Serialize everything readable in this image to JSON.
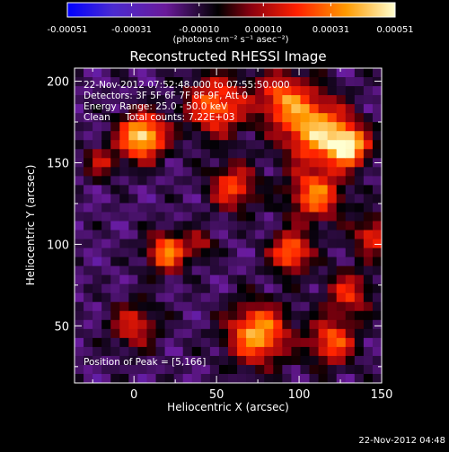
{
  "chart_data": {
    "type": "heatmap",
    "title": "Reconstructed RHESSI Image",
    "xlabel": "Heliocentric X (arcsec)",
    "ylabel": "Heliocentric Y (arcsec)",
    "xlim": [
      -36,
      150
    ],
    "ylim": [
      15,
      208
    ],
    "x_ticks": [
      0,
      50,
      100,
      150
    ],
    "y_ticks": [
      50,
      100,
      150,
      200
    ],
    "colorbar": {
      "min": -0.00051,
      "max": 0.00051,
      "tick_labels": [
        "-0.00051",
        "-0.00031",
        "-0.00010",
        "0.00010",
        "0.00031",
        "0.00051"
      ],
      "tick_values": [
        -0.00051,
        -0.00031,
        -0.0001,
        0.0001,
        0.00031,
        0.00051
      ],
      "unit_label": "(photons cm⁻² s⁻¹ asec⁻²)",
      "colormap": [
        "#0000ff",
        "#4b2bd0",
        "#6a1a9a",
        "#000000",
        "#8a0010",
        "#ff2000",
        "#ff9a00",
        "#ffffd0"
      ]
    },
    "annotations": [
      "22-Nov-2012 07:52:48.000 to 07:55:50.000",
      "Detectors: 3F 5F 6F 7F 8F 9F, Att 0",
      "Energy Range: 25.0 - 50.0 keV",
      "Clean     Total counts: 7.22E+03"
    ],
    "peak_label": "Position of Peak = [5,166]",
    "peak_position": [
      5,
      166
    ]
  },
  "footer": {
    "timestamp": "22-Nov-2012 04:48"
  }
}
